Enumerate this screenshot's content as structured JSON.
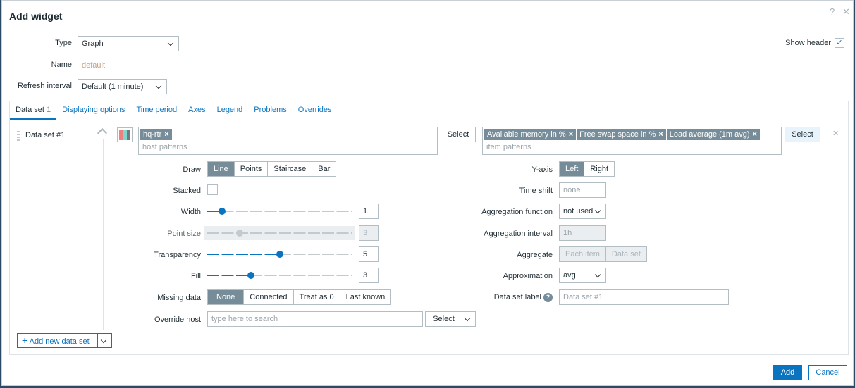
{
  "dialog": {
    "title": "Add widget",
    "help_icon": "?",
    "close_icon": "✕"
  },
  "form": {
    "type_label": "Type",
    "type_value": "Graph",
    "name_label": "Name",
    "name_placeholder": "default",
    "refresh_label": "Refresh interval",
    "refresh_value": "Default (1 minute)",
    "show_header_label": "Show header",
    "show_header_checked": true
  },
  "tabs": [
    {
      "label": "Data set",
      "count": "1",
      "active": true
    },
    {
      "label": "Displaying options"
    },
    {
      "label": "Time period"
    },
    {
      "label": "Axes"
    },
    {
      "label": "Legend"
    },
    {
      "label": "Problems"
    },
    {
      "label": "Overrides"
    }
  ],
  "dataset": {
    "name": "Data set #1",
    "palette_colors": [
      "#f08080",
      "#7fd6cc",
      "#707a80"
    ],
    "hosts": [
      "hq-rtr"
    ],
    "host_placeholder": "host patterns",
    "items": [
      "Available memory in %",
      "Free swap space in %",
      "Load average (1m avg)"
    ],
    "item_placeholder": "item patterns",
    "select_label": "Select",
    "remove_icon": "✕",
    "draw": {
      "label": "Draw",
      "options": [
        "Line",
        "Points",
        "Staircase",
        "Bar"
      ],
      "selected": "Line"
    },
    "stacked": {
      "label": "Stacked",
      "checked": false
    },
    "width": {
      "label": "Width",
      "value": "1",
      "min": 0,
      "max": 10
    },
    "point_size": {
      "label": "Point size",
      "value": "3",
      "min": 1,
      "max": 10,
      "disabled": true
    },
    "transparency": {
      "label": "Transparency",
      "value": "5",
      "min": 0,
      "max": 10
    },
    "fill": {
      "label": "Fill",
      "value": "3",
      "min": 0,
      "max": 10
    },
    "missing_data": {
      "label": "Missing data",
      "options": [
        "None",
        "Connected",
        "Treat as 0",
        "Last known"
      ],
      "selected": "None"
    },
    "override_host": {
      "label": "Override host",
      "placeholder": "type here to search",
      "select_label": "Select"
    },
    "y_axis": {
      "label": "Y-axis",
      "options": [
        "Left",
        "Right"
      ],
      "selected": "Left"
    },
    "time_shift": {
      "label": "Time shift",
      "placeholder": "none"
    },
    "agg_function": {
      "label": "Aggregation function",
      "value": "not used"
    },
    "agg_interval": {
      "label": "Aggregation interval",
      "placeholder": "1h"
    },
    "aggregate": {
      "label": "Aggregate",
      "options": [
        "Each item",
        "Data set"
      ]
    },
    "approximation": {
      "label": "Approximation",
      "value": "avg"
    },
    "ds_label": {
      "label": "Data set label",
      "help": "?",
      "placeholder": "Data set #1"
    }
  },
  "add_dataset_label": "Add new data set",
  "footer": {
    "add": "Add",
    "cancel": "Cancel"
  }
}
